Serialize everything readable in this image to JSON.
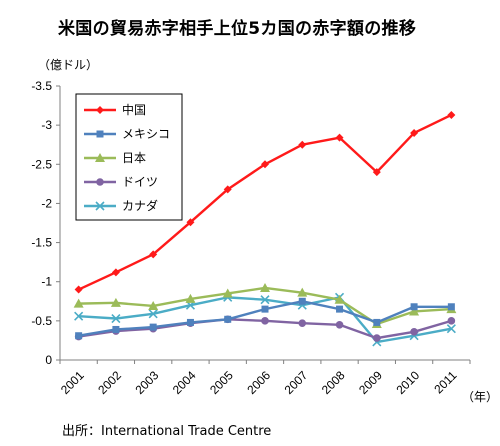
{
  "chart_data": {
    "type": "line",
    "title": "米国の貿易赤字相手上位5カ国の赤字額の推移",
    "ylabel": "（億ドル）",
    "xlabel": "（年）",
    "categories": [
      "2001",
      "2002",
      "2003",
      "2004",
      "2005",
      "2006",
      "2007",
      "2008",
      "2009",
      "2010",
      "2011"
    ],
    "yticks": [
      "-3.5",
      "-3",
      "-2.5",
      "-2",
      "-1.5",
      "-1",
      "-0.5",
      "0"
    ],
    "ylim": [
      0,
      -3.5
    ],
    "y_inverted": true,
    "grid": false,
    "legend_position": "top-left",
    "series": [
      {
        "name": "中国",
        "color": "#ff1a1a",
        "marker": "diamond",
        "values": [
          -0.9,
          -1.12,
          -1.35,
          -1.76,
          -2.18,
          -2.5,
          -2.75,
          -2.84,
          -2.4,
          -2.9,
          -3.13
        ]
      },
      {
        "name": "メキシコ",
        "color": "#4f81bd",
        "marker": "square",
        "values": [
          -0.31,
          -0.39,
          -0.42,
          -0.48,
          -0.52,
          -0.65,
          -0.75,
          -0.65,
          -0.48,
          -0.68,
          -0.68
        ]
      },
      {
        "name": "日本",
        "color": "#9bbb59",
        "marker": "triangle",
        "values": [
          -0.72,
          -0.73,
          -0.69,
          -0.78,
          -0.85,
          -0.92,
          -0.86,
          -0.77,
          -0.46,
          -0.62,
          -0.65
        ]
      },
      {
        "name": "ドイツ",
        "color": "#8064a2",
        "marker": "circle",
        "values": [
          -0.3,
          -0.37,
          -0.4,
          -0.47,
          -0.52,
          -0.5,
          -0.47,
          -0.45,
          -0.28,
          -0.36,
          -0.5
        ]
      },
      {
        "name": "カナダ",
        "color": "#4bacc6",
        "marker": "x",
        "values": [
          -0.56,
          -0.53,
          -0.59,
          -0.7,
          -0.8,
          -0.77,
          -0.7,
          -0.8,
          -0.23,
          -0.31,
          -0.4
        ]
      }
    ]
  },
  "source": "出所：International Trade Centre"
}
